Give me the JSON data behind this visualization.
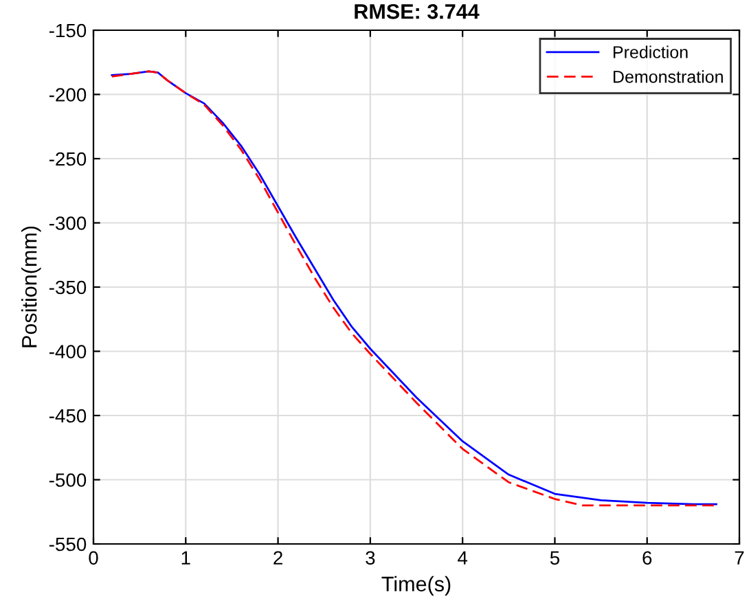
{
  "chart_data": {
    "type": "line",
    "title": "RMSE: 3.744",
    "xlabel": "Time(s)",
    "ylabel": "Position(mm)",
    "xlim": [
      0,
      7
    ],
    "xticks": [
      0,
      1,
      2,
      3,
      4,
      5,
      6,
      7
    ],
    "ylim": [
      -550,
      -150
    ],
    "yticks": [
      -550,
      -500,
      -450,
      -400,
      -350,
      -300,
      -250,
      -200,
      -150
    ],
    "grid": true,
    "legend": "top right",
    "series": [
      {
        "name": "Prediction",
        "color": "#0000ff",
        "line_style": "solid",
        "x": [
          0.2,
          0.4,
          0.6,
          0.7,
          0.8,
          1.0,
          1.2,
          1.4,
          1.6,
          1.8,
          2.0,
          2.2,
          2.4,
          2.6,
          2.8,
          3.0,
          3.5,
          4.0,
          4.5,
          5.0,
          5.5,
          6.0,
          6.5,
          6.75
        ],
        "values": [
          -185,
          -184,
          -182,
          -183,
          -189,
          -199,
          -207,
          -222,
          -240,
          -262,
          -287,
          -312,
          -336,
          -360,
          -381,
          -398,
          -436,
          -470,
          -496,
          -511,
          -516,
          -518,
          -519,
          -519
        ]
      },
      {
        "name": "Demonstration",
        "color": "#ff0000",
        "line_style": "dashed",
        "x": [
          0.2,
          0.4,
          0.6,
          0.7,
          0.8,
          1.0,
          1.2,
          1.4,
          1.6,
          1.8,
          2.0,
          2.2,
          2.4,
          2.6,
          2.8,
          3.0,
          3.5,
          4.0,
          4.5,
          5.0,
          5.3,
          6.0,
          6.5,
          6.75
        ],
        "values": [
          -186,
          -184,
          -182,
          -183,
          -189,
          -199,
          -208,
          -224,
          -243,
          -266,
          -292,
          -318,
          -343,
          -366,
          -386,
          -402,
          -440,
          -476,
          -502,
          -515,
          -520,
          -520,
          -520,
          -520
        ]
      }
    ]
  }
}
